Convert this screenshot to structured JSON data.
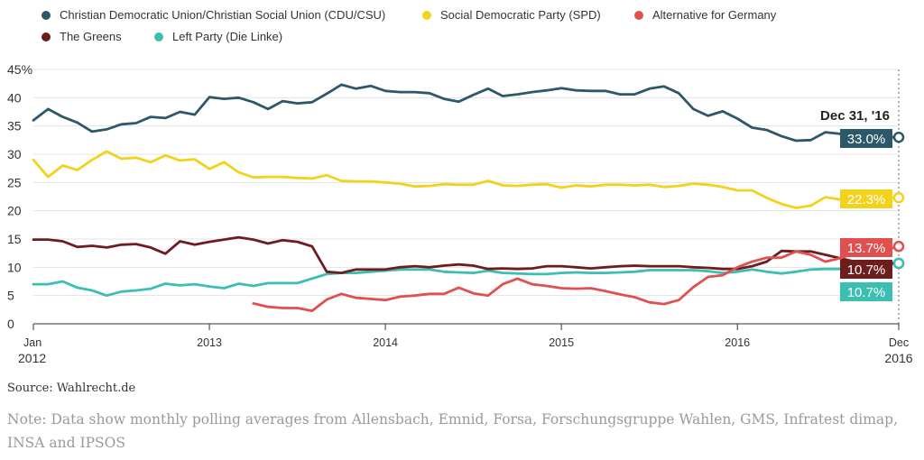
{
  "legend": {
    "items": [
      {
        "label": "Christian Democratic Union/Christian Social Union (CDU/CSU)",
        "color": "#2d5869"
      },
      {
        "label": "Social Democratic Party (SPD)",
        "color": "#f2d21b"
      },
      {
        "label": "Alternative for Germany",
        "color": "#e0504e"
      },
      {
        "label": "The Greens",
        "color": "#6e1d1f"
      },
      {
        "label": "Left Party (Die Linke)",
        "color": "#3cbfb3"
      }
    ]
  },
  "source": "Source: Wahlrecht.de",
  "note": "Note: Data show monthly polling averages from Allensbach, Emnid, Forsa, Forschungsgruppe Wahlen, GMS, Infratest dimap, INSA and IPSOS",
  "chart_data": {
    "type": "line",
    "x_start": "2012-01",
    "x_end": "2016-12",
    "x_ticks": [
      {
        "line1": "Jan",
        "line2": "2012",
        "month_index": 0
      },
      {
        "line1": "2013",
        "line2": "",
        "month_index": 12
      },
      {
        "line1": "2014",
        "line2": "",
        "month_index": 24
      },
      {
        "line1": "2015",
        "line2": "",
        "month_index": 36
      },
      {
        "line1": "2016",
        "line2": "",
        "month_index": 48
      },
      {
        "line1": "Dec",
        "line2": "2016",
        "month_index": 59
      }
    ],
    "y_ticks": [
      "0",
      "5",
      "10",
      "15",
      "20",
      "25",
      "30",
      "35",
      "40",
      "45%"
    ],
    "ylim": [
      0,
      45
    ],
    "grid": true,
    "end_annotation": "Dec 31, '16",
    "series": [
      {
        "name": "Christian Democratic Union/Christian Social Union (CDU/CSU)",
        "color": "#2d5869",
        "start_month_index": 0,
        "end_label": "33.0%",
        "values": [
          36.0,
          38.0,
          36.6,
          35.6,
          34.0,
          34.4,
          35.3,
          35.5,
          36.6,
          36.4,
          37.5,
          37.0,
          40.1,
          39.8,
          40.0,
          39.2,
          38.0,
          39.4,
          39.0,
          39.2,
          40.7,
          42.3,
          41.6,
          42.1,
          41.2,
          41.0,
          41.0,
          40.8,
          39.8,
          39.3,
          40.5,
          41.6,
          40.3,
          40.6,
          41.0,
          41.3,
          41.7,
          41.3,
          41.2,
          41.2,
          40.6,
          40.6,
          41.6,
          42.0,
          40.8,
          38.0,
          36.8,
          37.6,
          36.3,
          34.7,
          34.3,
          33.2,
          32.4,
          32.5,
          33.9,
          33.6,
          33.2,
          33.0,
          33.0,
          33.0
        ]
      },
      {
        "name": "Social Democratic Party (SPD)",
        "color": "#f2d21b",
        "start_month_index": 0,
        "end_label": "22.3%",
        "values": [
          29.0,
          26.0,
          28.0,
          27.2,
          29.0,
          30.5,
          29.2,
          29.4,
          28.6,
          29.8,
          28.9,
          29.1,
          27.4,
          28.6,
          26.8,
          25.9,
          26.0,
          26.0,
          25.8,
          25.7,
          26.3,
          25.3,
          25.2,
          25.2,
          25.0,
          24.8,
          24.3,
          24.4,
          24.7,
          24.6,
          24.6,
          25.3,
          24.5,
          24.4,
          24.6,
          24.7,
          24.1,
          24.5,
          24.3,
          24.6,
          24.6,
          24.5,
          24.6,
          24.2,
          24.4,
          24.8,
          24.6,
          24.2,
          23.6,
          23.6,
          22.3,
          21.2,
          20.5,
          20.9,
          22.4,
          22.0,
          22.5,
          22.3,
          22.3,
          22.3
        ]
      },
      {
        "name": "Alternative for Germany",
        "color": "#e0504e",
        "start_month_index": 15,
        "end_label": "13.7%",
        "values": [
          3.6,
          3.0,
          2.8,
          2.8,
          2.3,
          4.3,
          5.3,
          4.6,
          4.4,
          4.2,
          4.8,
          5.0,
          5.3,
          5.3,
          6.4,
          5.4,
          5.0,
          7.0,
          8.0,
          7.0,
          6.7,
          6.3,
          6.2,
          6.3,
          5.8,
          5.2,
          4.7,
          3.8,
          3.5,
          4.2,
          6.5,
          8.3,
          8.6,
          10.0,
          11.0,
          11.7,
          11.7,
          12.8,
          12.2,
          11.0,
          11.6,
          12.5,
          12.5,
          13.0,
          13.7
        ]
      },
      {
        "name": "The Greens",
        "color": "#6e1d1f",
        "start_month_index": 0,
        "end_label": "10.7%",
        "values": [
          14.9,
          14.9,
          14.6,
          13.6,
          13.8,
          13.5,
          14.0,
          14.1,
          13.5,
          12.4,
          14.6,
          14.0,
          14.5,
          14.9,
          15.3,
          14.9,
          14.2,
          14.8,
          14.5,
          13.7,
          9.2,
          9.0,
          9.6,
          9.6,
          9.6,
          10.0,
          10.2,
          10.0,
          10.3,
          10.5,
          10.3,
          9.7,
          9.8,
          9.7,
          9.8,
          10.2,
          10.2,
          10.0,
          9.8,
          10.0,
          10.2,
          10.3,
          10.2,
          10.2,
          10.2,
          10.0,
          9.9,
          9.7,
          9.7,
          10.2,
          11.0,
          12.9,
          12.8,
          12.8,
          12.2,
          11.6,
          11.0,
          10.9,
          10.8,
          10.7
        ]
      },
      {
        "name": "Left Party (Die Linke)",
        "color": "#3cbfb3",
        "start_month_index": 0,
        "end_label": "10.7%",
        "values": [
          7.0,
          7.0,
          7.5,
          6.4,
          5.9,
          5.0,
          5.7,
          5.9,
          6.2,
          7.1,
          6.8,
          7.0,
          6.6,
          6.3,
          7.1,
          6.7,
          7.2,
          7.2,
          7.2,
          8.0,
          8.8,
          9.0,
          9.0,
          9.2,
          9.4,
          9.6,
          9.6,
          9.6,
          9.2,
          9.1,
          9.0,
          9.4,
          9.0,
          8.9,
          8.8,
          8.8,
          9.0,
          9.1,
          9.0,
          9.0,
          9.1,
          9.2,
          9.5,
          9.5,
          9.5,
          9.5,
          9.3,
          9.0,
          9.2,
          9.6,
          9.2,
          8.9,
          9.2,
          9.6,
          9.7,
          9.7,
          9.8,
          10.0,
          10.4,
          10.7
        ]
      }
    ]
  }
}
